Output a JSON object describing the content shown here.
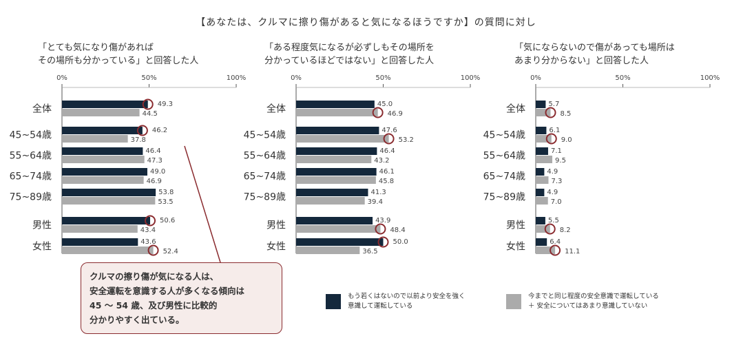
{
  "title": "【あなたは、クルマに擦り傷があると気になるほうですか】の質問に対し",
  "categories": [
    "全体",
    "45~54歳",
    "55~64歳",
    "65~74歳",
    "75~89歳",
    "男性",
    "女性"
  ],
  "colors": {
    "dark": "#14283c",
    "gray": "#ababab",
    "circle": "#8a2b2f",
    "axis": "#555555",
    "grid": "#bbbbbb"
  },
  "chart_data": [
    {
      "type": "bar",
      "title": "「とても気になり傷があれば\nその場所も分かっている」と回答した人",
      "categories": [
        "全体",
        "45~54歳",
        "55~64歳",
        "65~74歳",
        "75~89歳",
        "男性",
        "女性"
      ],
      "series": [
        {
          "name": "もう若くはないので以前より安全を強く意識して運転している",
          "values": [
            49.3,
            46.2,
            46.4,
            49.0,
            53.8,
            50.6,
            43.6
          ]
        },
        {
          "name": "今までと同じ程度の安全意識で運転している＋安全についてはあまり意識していない",
          "values": [
            44.5,
            37.8,
            47.3,
            46.9,
            53.5,
            43.4,
            52.4
          ]
        }
      ],
      "highlight": [
        {
          "category": "全体",
          "series": 0
        },
        {
          "category": "45~54歳",
          "series": 0
        },
        {
          "category": "男性",
          "series": 0
        },
        {
          "category": "女性",
          "series": 1
        }
      ],
      "xlim": [
        0,
        100
      ],
      "xticks": [
        "0%",
        "50%",
        "100%"
      ]
    },
    {
      "type": "bar",
      "title": "「ある程度気になるが必ずしもその場所を\n分かっているほどではない」と回答した人",
      "categories": [
        "全体",
        "45~54歳",
        "55~64歳",
        "65~74歳",
        "75~89歳",
        "男性",
        "女性"
      ],
      "series": [
        {
          "name": "もう若くはないので以前より安全を強く意識して運転している",
          "values": [
            45.0,
            47.6,
            46.4,
            46.1,
            41.3,
            43.9,
            50.0
          ]
        },
        {
          "name": "今までと同じ程度の安全意識で運転している＋安全についてはあまり意識していない",
          "values": [
            46.9,
            53.2,
            43.2,
            45.8,
            39.4,
            48.4,
            36.5
          ]
        }
      ],
      "highlight": [
        {
          "category": "全体",
          "series": 1
        },
        {
          "category": "45~54歳",
          "series": 1
        },
        {
          "category": "男性",
          "series": 1
        },
        {
          "category": "女性",
          "series": 0
        }
      ],
      "xlim": [
        0,
        100
      ],
      "xticks": [
        "0%",
        "50%",
        "100%"
      ]
    },
    {
      "type": "bar",
      "title": "「気にならないので傷があっても場所は\nあまり分からない」と回答した人",
      "categories": [
        "全体",
        "45~54歳",
        "55~64歳",
        "65~74歳",
        "75~89歳",
        "男性",
        "女性"
      ],
      "series": [
        {
          "name": "もう若くはないので以前より安全を強く意識して運転している",
          "values": [
            5.7,
            6.1,
            7.1,
            4.9,
            4.9,
            5.5,
            6.4
          ]
        },
        {
          "name": "今までと同じ程度の安全意識で運転している＋安全についてはあまり意識していない",
          "values": [
            8.5,
            9.0,
            9.5,
            7.3,
            7.0,
            8.2,
            11.1
          ]
        }
      ],
      "highlight": [
        {
          "category": "全体",
          "series": 1
        },
        {
          "category": "45~54歳",
          "series": 1
        },
        {
          "category": "男性",
          "series": 1
        },
        {
          "category": "女性",
          "series": 1
        }
      ],
      "xlim": [
        0,
        100
      ],
      "xticks": [
        "0%",
        "50%",
        "100%"
      ]
    }
  ],
  "note": "クルマの擦り傷が気になる人は、\n安全運転を意識する人が多くなる傾向は\n45 ～ 54 歳、及び男性に比較的\n分かりやすく出ている。",
  "legend": [
    {
      "label": "もう若くはないので以前より安全を強く\n意識して運転している",
      "color": "#14283c"
    },
    {
      "label": "今までと同じ程度の安全意識で運転している\n＋ 安全についてはあまり意識していない",
      "color": "#ababab"
    }
  ]
}
